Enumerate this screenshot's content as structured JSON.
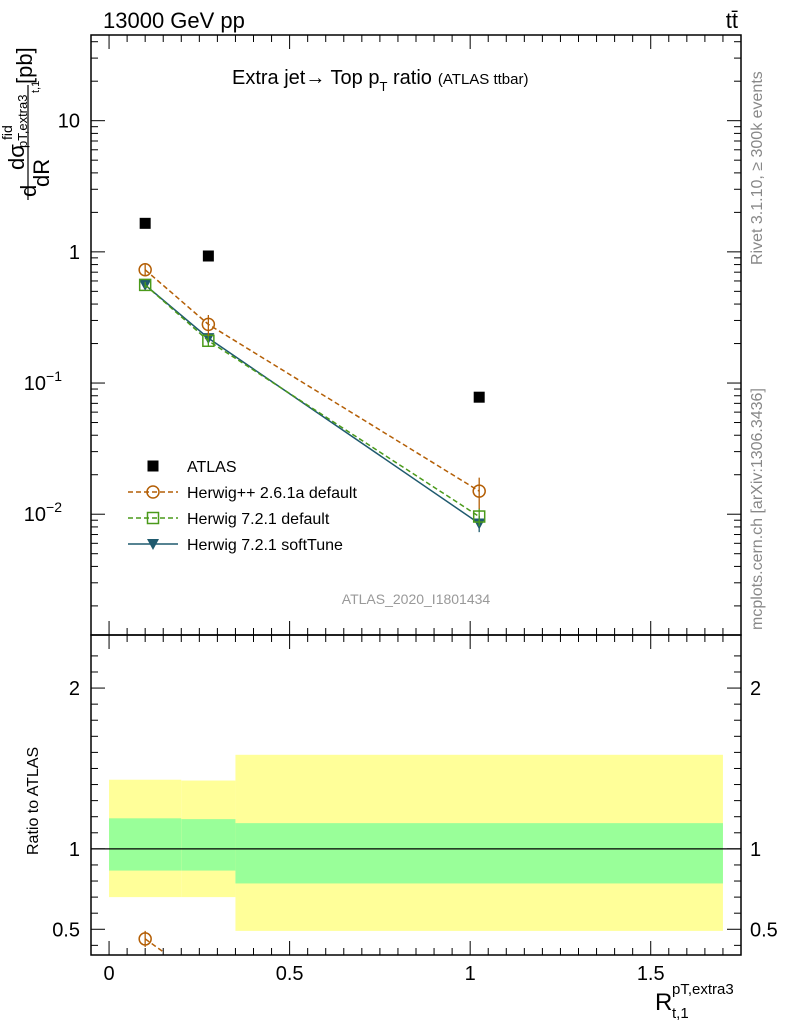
{
  "header": {
    "left": "13000 GeV pp",
    "right": "tt̄"
  },
  "side_labels": {
    "rivet": "Rivet 3.1.10, ≥ 300k events",
    "mcplots": "mcplots.cern.ch [arXiv:1306.3436]"
  },
  "chart_data": [
    {
      "type": "scatter",
      "panel": "main",
      "title": "Extra jet→ Top p_T ratio",
      "title_parts": {
        "prefix": "Extra jet",
        "arrow": "→",
        "mid": " Top p",
        "sub": "T",
        "suffix": " ratio",
        "tag": "(ATLAS ttbar)"
      },
      "ylabel": "dσ^fid / dR^{pT,extra3}_{t,1} [pb]",
      "ylabel_parts": {
        "d1": "d",
        "sigma": "dσ",
        "fid": "fid",
        "sub": "pT,extra3",
        "subsub": "t,1",
        "dR": "dR",
        "unit": "[pb]"
      },
      "yscale": "log",
      "ylim": [
        0.0012,
        45
      ],
      "xlim": [
        -0.05,
        1.75
      ],
      "y_ticks": [
        {
          "value": 10,
          "base": "10",
          "exp": ""
        },
        {
          "value": 1,
          "base": "1",
          "exp": ""
        },
        {
          "value": 0.1,
          "base": "10",
          "exp": "−1"
        },
        {
          "value": 0.01,
          "base": "10",
          "exp": "−2"
        }
      ],
      "watermark": "ATLAS_2020_I1801434",
      "legend_position": "bottom-left",
      "series": [
        {
          "name": "ATLAS",
          "marker": "filled-square",
          "color": "#000000",
          "line": "none",
          "x": [
            0.1,
            0.275,
            1.025
          ],
          "y": [
            1.65,
            0.93,
            0.078
          ]
        },
        {
          "name": "Herwig++ 2.6.1a default",
          "marker": "open-circle",
          "color": "#b45f06",
          "line": "dashed",
          "x": [
            0.1,
            0.275,
            1.025
          ],
          "y": [
            0.73,
            0.28,
            0.015
          ],
          "err": [
            0.07,
            0.05,
            0.004
          ]
        },
        {
          "name": "Herwig 7.2.1 default",
          "marker": "open-square",
          "color": "#4a9a1a",
          "line": "dashed",
          "x": [
            0.1,
            0.275,
            1.025
          ],
          "y": [
            0.56,
            0.21,
            0.0096
          ],
          "err": [
            0.03,
            0.02,
            0.0015
          ]
        },
        {
          "name": "Herwig 7.2.1 softTune",
          "marker": "filled-triangle-down",
          "color": "#1f5a6e",
          "line": "solid",
          "x": [
            0.1,
            0.275,
            1.025
          ],
          "y": [
            0.56,
            0.22,
            0.0085
          ],
          "err": [
            0.03,
            0.02,
            0.0012
          ]
        }
      ]
    },
    {
      "type": "scatter",
      "panel": "ratio",
      "ylabel": "Ratio to ATLAS",
      "xlabel": "R^{pT,extra3}_{t,1}",
      "xlabel_parts": {
        "R": "R",
        "sup": "pT,extra3",
        "sub": "t,1"
      },
      "ylim": [
        0.34,
        2.33
      ],
      "xlim": [
        -0.05,
        1.75
      ],
      "y_ticks": [
        0.5,
        1,
        2
      ],
      "x_ticks": [
        {
          "value": 0,
          "label": "0"
        },
        {
          "value": 0.5,
          "label": "0.5"
        },
        {
          "value": 1,
          "label": "1"
        },
        {
          "value": 1.5,
          "label": "1.5"
        }
      ],
      "reference_line": 1,
      "bands": [
        {
          "x0": 0.0,
          "x1": 0.2,
          "inner": [
            0.865,
            1.19
          ],
          "outer": [
            0.7,
            1.43
          ]
        },
        {
          "x0": 0.2,
          "x1": 0.35,
          "inner": [
            0.865,
            1.185
          ],
          "outer": [
            0.7,
            1.425
          ]
        },
        {
          "x0": 0.35,
          "x1": 1.7,
          "inner": [
            0.785,
            1.16
          ],
          "outer": [
            0.49,
            1.585
          ]
        }
      ],
      "band_colors": {
        "inner": "#99ff99",
        "outer": "#ffff99"
      },
      "series": [
        {
          "name": "Herwig++ 2.6.1a default",
          "marker": "open-circle",
          "color": "#b45f06",
          "x": [
            0.1
          ],
          "y": [
            0.44
          ],
          "err": [
            0.05
          ],
          "trend_to": [
            0.15,
            0.36
          ]
        }
      ]
    }
  ]
}
